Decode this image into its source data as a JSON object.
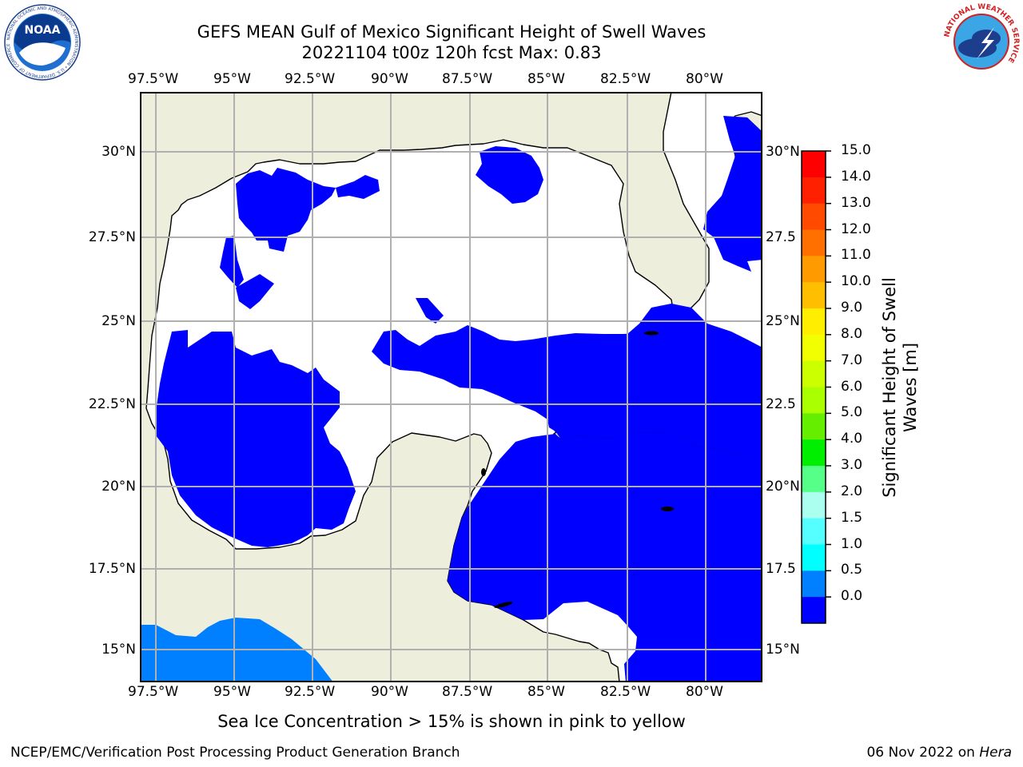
{
  "title": {
    "line1": "GEFS MEAN Gulf of Mexico Significant Height of Swell Waves",
    "line2": "20221104 t00z 120h fcst   Max: 0.83"
  },
  "map": {
    "lon_labels": [
      "97.5°W",
      "95°W",
      "92.5°W",
      "90°W",
      "87.5°W",
      "85°W",
      "82.5°W",
      "80°W"
    ],
    "lat_labels": [
      "30°N",
      "27.5°N",
      "25°N",
      "22.5°N",
      "20°N",
      "17.5°N",
      "15°N"
    ],
    "lat_labels_right": [
      "30°N",
      "27.5",
      "25°N",
      "22.5",
      "20°N",
      "17.5",
      "15°N"
    ],
    "colors": {
      "land": "#eeeedd",
      "ocean_no_data": "#ffffff",
      "swell_0_0.5": "#0000ff",
      "swell_0.5_1.0": "#0080ff",
      "grid": "#b0b0b0",
      "coast": "#000000"
    }
  },
  "colorbar": {
    "label": "Significant Height of Swell Waves [m]",
    "label_line1": "Significant Height of Swell",
    "label_line2": "Waves [m]",
    "ticks": [
      "15.0",
      "14.0",
      "13.0",
      "12.0",
      "11.0",
      "10.0",
      "9.0",
      "8.0",
      "7.0",
      "6.0",
      "5.0",
      "4.0",
      "3.0",
      "2.0",
      "1.5",
      "1.0",
      "0.5",
      "0.0"
    ],
    "colors": [
      "#ff0000",
      "#ff2000",
      "#ff4a00",
      "#ff7000",
      "#ff9a00",
      "#ffbf00",
      "#ffee00",
      "#f2ff00",
      "#ccff00",
      "#aaff00",
      "#66ee00",
      "#00ee00",
      "#55ff88",
      "#aaffee",
      "#55ffff",
      "#00ffff",
      "#0080ff",
      "#0000ff"
    ]
  },
  "logos": {
    "noaa_text": "NOAA",
    "noaa_ring": "NATIONAL OCEANIC AND ATMOSPHERIC ADMINISTRATION • U.S. DEPARTMENT OF COMMERCE",
    "nws_ring": "NATIONAL WEATHER SERVICE"
  },
  "footnote": "Sea Ice Concentration > 15% is shown in pink to yellow",
  "credit": "NCEP/EMC/Verification Post Processing Product Generation Branch",
  "date": "06 Nov 2022 on",
  "host": "Hera"
}
